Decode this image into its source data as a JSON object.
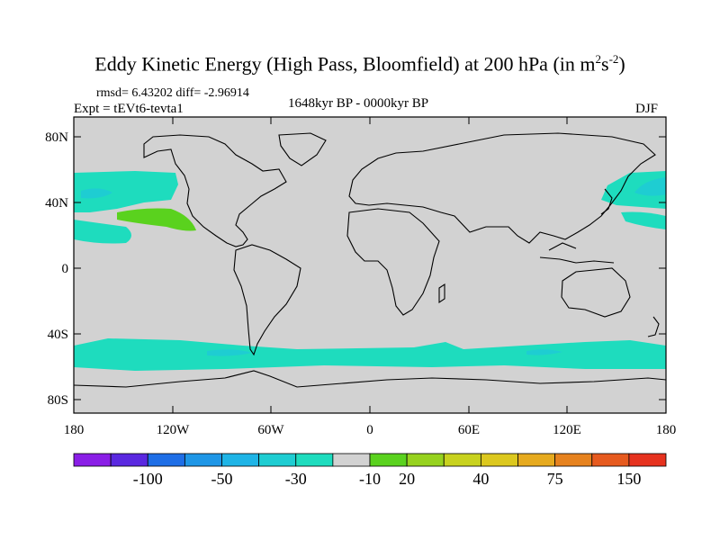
{
  "title": {
    "main": "Eddy Kinetic Energy (High Pass, Bloomfield) at 200 hPa (in m",
    "sup1": "2",
    "mid": "s",
    "sup2": "-2",
    "tail": ")"
  },
  "stats": "rmsd= 6.43202 diff= -2.96914",
  "experiment": "Expt = tEVt6-tevta1",
  "period": "1648kyr BP - 0000kyr BP",
  "season": "DJF",
  "y_axis_labels": [
    "80N",
    "40N",
    "0",
    "40S",
    "80S"
  ],
  "x_axis_labels": [
    "180",
    "120W",
    "60W",
    "0",
    "60E",
    "120E",
    "180"
  ],
  "colorbar": {
    "colors": [
      "#8a1ee6",
      "#5a28e0",
      "#1e6ee6",
      "#1e96e6",
      "#1eb4e6",
      "#1ecdd2",
      "#1edcbe",
      "#d2d2d2",
      "#5ad21e",
      "#96d21e",
      "#c8d21e",
      "#dcc81e",
      "#e6aa1e",
      "#e6821e",
      "#e65a1e",
      "#e6321e"
    ],
    "labels": [
      "-100",
      "-50",
      "-30",
      "-10",
      "20",
      "40",
      "75",
      "150"
    ]
  },
  "colors": {
    "land_ocean_bg": "#d2d2d2",
    "negative_light": "#1edcbe",
    "negative_mid": "#1ecdd2",
    "positive_green": "#5ad21e"
  }
}
